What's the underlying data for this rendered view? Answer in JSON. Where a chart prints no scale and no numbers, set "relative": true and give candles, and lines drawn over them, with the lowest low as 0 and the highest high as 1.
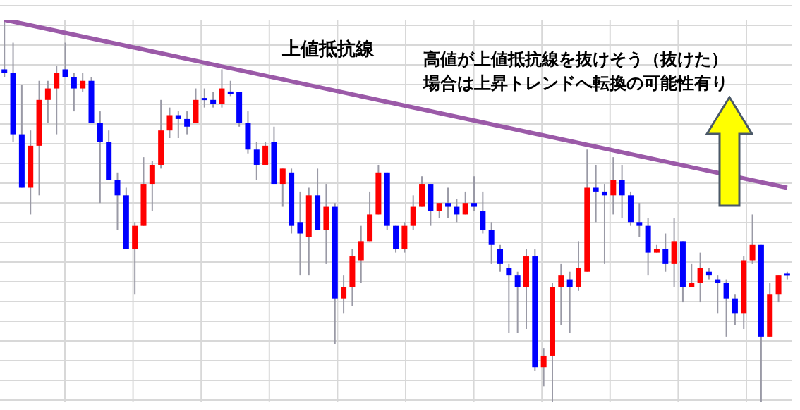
{
  "chart_data": {
    "type": "candlestick",
    "relative": true,
    "grid": true,
    "tick_labels": false,
    "annotations": [
      "高値が上値抵抗線を抜けそう（抜けた）",
      "場合は上昇トレンドへ転換の可能性有り"
    ],
    "categories": [
      null,
      null,
      null,
      null,
      null,
      null,
      null,
      null,
      null,
      null,
      null,
      null,
      null,
      null,
      null,
      null,
      null,
      null,
      null,
      null,
      null,
      null,
      null,
      null,
      null,
      null,
      null,
      null,
      null,
      null,
      null,
      null,
      null,
      null,
      null,
      null,
      null,
      null,
      null,
      null,
      null,
      null,
      null,
      null,
      null,
      null,
      null,
      null,
      null,
      null,
      null,
      null,
      null,
      null,
      null,
      null,
      null,
      null,
      null,
      null,
      null,
      null,
      null,
      null,
      null,
      null,
      null,
      null,
      null,
      null,
      null,
      null,
      null,
      null,
      null,
      null,
      null,
      null,
      null,
      null,
      null,
      null,
      null,
      null,
      null,
      null,
      null,
      null,
      null,
      null,
      null
    ],
    "ohlc": [
      [
        0.87,
        1.0,
        0.85,
        0.86
      ],
      [
        0.86,
        0.94,
        0.68,
        0.7
      ],
      [
        0.7,
        0.83,
        0.56,
        0.56
      ],
      [
        0.56,
        0.71,
        0.49,
        0.67
      ],
      [
        0.67,
        0.84,
        0.54,
        0.79
      ],
      [
        0.79,
        0.84,
        0.73,
        0.82
      ],
      [
        0.82,
        0.88,
        0.7,
        0.86
      ],
      [
        0.87,
        0.94,
        0.85,
        0.85
      ],
      [
        0.85,
        0.86,
        0.76,
        0.82
      ],
      [
        0.82,
        0.86,
        0.81,
        0.84
      ],
      [
        0.84,
        0.85,
        0.73,
        0.73
      ],
      [
        0.73,
        0.76,
        0.52,
        0.68
      ],
      [
        0.68,
        0.71,
        0.58,
        0.58
      ],
      [
        0.58,
        0.6,
        0.45,
        0.54
      ],
      [
        0.54,
        0.56,
        0.4,
        0.4
      ],
      [
        0.4,
        0.47,
        0.28,
        0.46
      ],
      [
        0.46,
        0.64,
        0.46,
        0.57
      ],
      [
        0.57,
        0.63,
        0.5,
        0.62
      ],
      [
        0.62,
        0.79,
        0.61,
        0.71
      ],
      [
        0.71,
        0.77,
        0.69,
        0.75
      ],
      [
        0.75,
        0.76,
        0.69,
        0.74
      ],
      [
        0.74,
        0.76,
        0.7,
        0.72
      ],
      [
        0.73,
        0.82,
        0.73,
        0.79
      ],
      [
        0.795,
        0.82,
        0.77,
        0.79
      ],
      [
        0.79,
        0.81,
        0.77,
        0.78
      ],
      [
        0.78,
        0.87,
        0.77,
        0.82
      ],
      [
        0.812,
        0.84,
        0.8,
        0.806
      ],
      [
        0.81,
        0.81,
        0.72,
        0.73
      ],
      [
        0.73,
        0.76,
        0.65,
        0.66
      ],
      [
        0.66,
        0.68,
        0.58,
        0.62
      ],
      [
        0.62,
        0.68,
        0.62,
        0.67
      ],
      [
        0.68,
        0.72,
        0.57,
        0.57
      ],
      [
        0.57,
        0.61,
        0.51,
        0.61
      ],
      [
        0.6,
        0.61,
        0.44,
        0.46
      ],
      [
        0.47,
        0.55,
        0.33,
        0.44
      ],
      [
        0.43,
        0.56,
        0.33,
        0.54
      ],
      [
        0.54,
        0.61,
        0.45,
        0.45
      ],
      [
        0.45,
        0.57,
        0.36,
        0.51
      ],
      [
        0.51,
        0.52,
        0.15,
        0.27
      ],
      [
        0.27,
        0.33,
        0.23,
        0.3
      ],
      [
        0.3,
        0.4,
        0.25,
        0.38
      ],
      [
        0.37,
        0.46,
        0.31,
        0.42
      ],
      [
        0.42,
        0.55,
        0.42,
        0.49
      ],
      [
        0.49,
        0.62,
        0.49,
        0.6
      ],
      [
        0.6,
        0.6,
        0.45,
        0.46
      ],
      [
        0.46,
        0.46,
        0.39,
        0.4
      ],
      [
        0.4,
        0.47,
        0.39,
        0.46
      ],
      [
        0.46,
        0.54,
        0.45,
        0.51
      ],
      [
        0.51,
        0.59,
        0.51,
        0.57
      ],
      [
        0.57,
        0.57,
        0.46,
        0.5
      ],
      [
        0.5,
        0.52,
        0.48,
        0.52
      ],
      [
        0.52,
        0.56,
        0.48,
        0.51
      ],
      [
        0.51,
        0.53,
        0.47,
        0.49
      ],
      [
        0.49,
        0.55,
        0.49,
        0.52
      ],
      [
        0.52,
        0.59,
        0.5,
        0.51
      ],
      [
        0.5,
        0.55,
        0.44,
        0.45
      ],
      [
        0.45,
        0.47,
        0.36,
        0.41
      ],
      [
        0.4,
        0.41,
        0.34,
        0.36
      ],
      [
        0.35,
        0.36,
        0.18,
        0.33
      ],
      [
        0.33,
        0.34,
        0.18,
        0.3
      ],
      [
        0.3,
        0.4,
        0.19,
        0.38
      ],
      [
        0.38,
        0.4,
        0.08,
        0.09
      ],
      [
        0.09,
        0.14,
        0.04,
        0.12
      ],
      [
        0.12,
        0.31,
        0.0,
        0.3
      ],
      [
        0.3,
        0.36,
        0.2,
        0.33
      ],
      [
        0.32,
        0.34,
        0.18,
        0.3
      ],
      [
        0.3,
        0.42,
        0.29,
        0.35
      ],
      [
        0.34,
        0.66,
        0.34,
        0.56
      ],
      [
        0.56,
        0.62,
        0.47,
        0.55
      ],
      [
        0.55,
        0.57,
        0.36,
        0.54
      ],
      [
        0.54,
        0.64,
        0.49,
        0.58
      ],
      [
        0.58,
        0.62,
        0.48,
        0.54
      ],
      [
        0.54,
        0.55,
        0.46,
        0.47
      ],
      [
        0.47,
        0.52,
        0.43,
        0.46
      ],
      [
        0.46,
        0.48,
        0.33,
        0.39
      ],
      [
        0.39,
        0.41,
        0.39,
        0.4
      ],
      [
        0.4,
        0.44,
        0.34,
        0.36
      ],
      [
        0.36,
        0.48,
        0.3,
        0.42
      ],
      [
        0.42,
        0.42,
        0.26,
        0.3
      ],
      [
        0.3,
        0.36,
        0.3,
        0.31
      ],
      [
        0.31,
        0.39,
        0.26,
        0.35
      ],
      [
        0.34,
        0.35,
        0.32,
        0.33
      ],
      [
        0.32,
        0.33,
        0.23,
        0.31
      ],
      [
        0.31,
        0.32,
        0.17,
        0.27
      ],
      [
        0.27,
        0.28,
        0.2,
        0.23
      ],
      [
        0.23,
        0.38,
        0.19,
        0.37
      ],
      [
        0.37,
        0.49,
        0.36,
        0.41
      ],
      [
        0.41,
        0.41,
        0.0,
        0.17
      ],
      [
        0.17,
        0.31,
        0.17,
        0.28
      ],
      [
        0.28,
        0.33,
        0.26,
        0.33
      ],
      [
        0.335,
        0.34,
        0.32,
        0.33
      ]
    ],
    "colors": [
      "#0000ff",
      "#0000ff",
      "#0000ff",
      "#ff0000",
      "#ff0000",
      "#ff0000",
      "#ff0000",
      "#0000ff",
      "#0000ff",
      "#ff0000",
      "#0000ff",
      "#0000ff",
      "#0000ff",
      "#0000ff",
      "#0000ff",
      "#ff0000",
      "#ff0000",
      "#ff0000",
      "#ff0000",
      "#ff0000",
      "#0000ff",
      "#0000ff",
      "#ff0000",
      "#0000ff",
      "#0000ff",
      "#ff0000",
      "#0000ff",
      "#0000ff",
      "#0000ff",
      "#0000ff",
      "#ff0000",
      "#0000ff",
      "#ff0000",
      "#0000ff",
      "#0000ff",
      "#ff0000",
      "#0000ff",
      "#ff0000",
      "#0000ff",
      "#ff0000",
      "#ff0000",
      "#ff0000",
      "#ff0000",
      "#ff0000",
      "#0000ff",
      "#0000ff",
      "#ff0000",
      "#ff0000",
      "#ff0000",
      "#0000ff",
      "#ff0000",
      "#0000ff",
      "#0000ff",
      "#ff0000",
      "#0000ff",
      "#0000ff",
      "#0000ff",
      "#0000ff",
      "#0000ff",
      "#0000ff",
      "#ff0000",
      "#0000ff",
      "#ff0000",
      "#ff0000",
      "#ff0000",
      "#0000ff",
      "#ff0000",
      "#ff0000",
      "#0000ff",
      "#0000ff",
      "#ff0000",
      "#0000ff",
      "#0000ff",
      "#0000ff",
      "#0000ff",
      "#ff0000",
      "#0000ff",
      "#ff0000",
      "#0000ff",
      "#ff0000",
      "#ff0000",
      "#0000ff",
      "#0000ff",
      "#0000ff",
      "#0000ff",
      "#ff0000",
      "#ff0000",
      "#0000ff",
      "#ff0000",
      "#ff0000",
      "#0000ff"
    ],
    "series": [
      {
        "type": "line",
        "name": "上値抵抗線",
        "color": "#9b5aa8",
        "values": [
          1.0,
          null,
          null,
          null,
          null,
          null,
          null,
          null,
          null,
          null,
          null,
          null,
          null,
          null,
          null,
          null,
          null,
          null,
          null,
          null,
          null,
          null,
          null,
          null,
          null,
          null,
          null,
          null,
          null,
          null,
          null,
          null,
          null,
          null,
          null,
          null,
          null,
          null,
          null,
          null,
          null,
          null,
          null,
          null,
          null,
          null,
          null,
          null,
          null,
          null,
          null,
          null,
          null,
          null,
          null,
          null,
          null,
          null,
          null,
          null,
          null,
          null,
          null,
          null,
          null,
          null,
          null,
          null,
          null,
          null,
          null,
          null,
          null,
          null,
          null,
          null,
          null,
          null,
          null,
          null,
          null,
          null,
          null,
          null,
          null,
          null,
          null,
          null,
          null,
          null,
          0.56
        ]
      }
    ]
  }
}
